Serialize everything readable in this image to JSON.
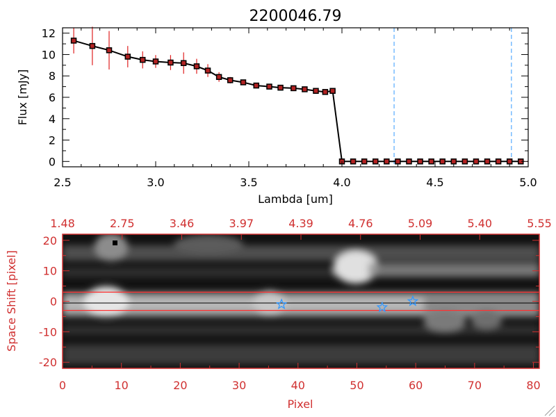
{
  "chart_data": [
    {
      "type": "line",
      "title": "2200046.79",
      "xlabel": "Lambda [um]",
      "ylabel": "Flux [mJy]",
      "xlim": [
        2.5,
        5.0
      ],
      "ylim": [
        -0.5,
        12.5
      ],
      "x_ticks": [
        "2.5",
        "3.0",
        "3.5",
        "4.0",
        "4.5",
        "5.0"
      ],
      "y_ticks": [
        "0",
        "2",
        "4",
        "6",
        "8",
        "10",
        "12"
      ],
      "series": [
        {
          "x": [
            2.56,
            2.66,
            2.75,
            2.85,
            2.93,
            3.0,
            3.08,
            3.15,
            3.22,
            3.28,
            3.34,
            3.4,
            3.47,
            3.54,
            3.61,
            3.67,
            3.74,
            3.8,
            3.86,
            3.91,
            3.95,
            4.0,
            4.06,
            4.12,
            4.18,
            4.24,
            4.3,
            4.36,
            4.42,
            4.48,
            4.54,
            4.6,
            4.66,
            4.72,
            4.78,
            4.84,
            4.9,
            4.96
          ],
          "y": [
            11.3,
            10.8,
            10.4,
            9.8,
            9.5,
            9.35,
            9.25,
            9.2,
            8.9,
            8.5,
            7.9,
            7.6,
            7.4,
            7.1,
            7.0,
            6.9,
            6.85,
            6.75,
            6.6,
            6.5,
            6.6,
            0,
            0,
            0,
            0,
            0,
            0,
            0,
            0,
            0,
            0,
            0,
            0,
            0,
            0,
            0,
            0,
            0
          ],
          "yerr": [
            1.2,
            1.8,
            1.8,
            1.0,
            0.8,
            0.6,
            0.7,
            1.0,
            0.7,
            0.6,
            0.45,
            0.3,
            0.2,
            0.15,
            0.15,
            0.15,
            0.1,
            0.1,
            0.1,
            0.1,
            0.1,
            0,
            0,
            0,
            0,
            0,
            0,
            0,
            0,
            0,
            0,
            0,
            0,
            0,
            0,
            0,
            0,
            0
          ]
        }
      ],
      "vlines": [
        4.28,
        4.91
      ],
      "colors": {
        "line": "#000000",
        "marker": "#b22222",
        "error": "#e02020",
        "vline": "#3399ff",
        "zero_line": "#e02020"
      }
    },
    {
      "type": "heatmap",
      "xlabel": "Pixel",
      "ylabel": "Space Shift [pixel]",
      "xlim": [
        0,
        81
      ],
      "ylim": [
        -22,
        22
      ],
      "x_ticks": [
        "0",
        "10",
        "20",
        "30",
        "40",
        "50",
        "60",
        "70",
        "80"
      ],
      "y_ticks": [
        "-20",
        "-10",
        "0",
        "10",
        "20"
      ],
      "top_ticks": [
        "1.48",
        "2.75",
        "3.46",
        "3.97",
        "4.39",
        "4.76",
        "5.09",
        "5.40",
        "5.55"
      ],
      "hlines": [
        3,
        -3
      ],
      "stars": [
        {
          "x": 37.2,
          "y": -1
        },
        {
          "x": 54.3,
          "y": -2
        },
        {
          "x": 59.5,
          "y": 0
        }
      ],
      "colors": {
        "axis": "#d03030",
        "star": "#3399ff",
        "band_line": "#ff3030"
      }
    }
  ]
}
